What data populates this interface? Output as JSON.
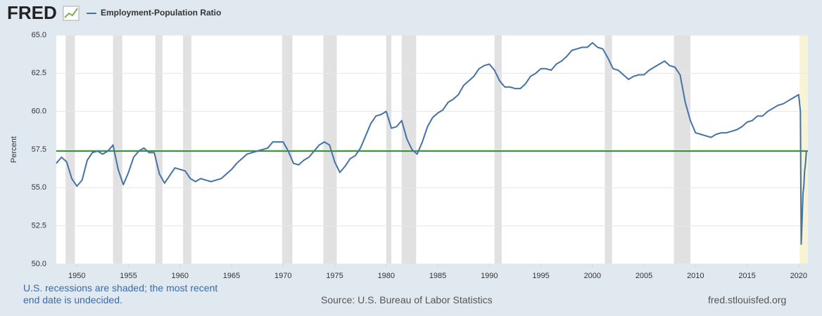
{
  "chart_data": {
    "type": "line",
    "logo": "FRED",
    "y_label": "Percent",
    "note": "U.S. recessions are shaded; the most recent end date is undecided.",
    "source": "Source: U.S. Bureau of Labor Statistics",
    "site": "fred.stlouisfed.org",
    "xlim": [
      1948,
      2020.9
    ],
    "xticks": [
      1950,
      1955,
      1960,
      1965,
      1970,
      1975,
      1980,
      1985,
      1990,
      1995,
      2000,
      2005,
      2010,
      2015,
      2020
    ],
    "ylim": [
      50,
      65
    ],
    "yticks": [
      {
        "value": 50,
        "label": "50.0"
      },
      52.5,
      {
        "value": 55,
        "label": "55.0"
      },
      57.5,
      {
        "value": 60,
        "label": "60.0"
      },
      62.5,
      {
        "value": 65,
        "label": "65.0"
      }
    ],
    "grid": true,
    "reference_line": {
      "value": 57.4,
      "color": "#2e8b2e"
    },
    "recession_color": "#e1e1e1",
    "recent_recession_color": "#f7f3d4",
    "recessions": [
      [
        1948.9,
        1949.8
      ],
      [
        1953.5,
        1954.4
      ],
      [
        1957.6,
        1958.3
      ],
      [
        1960.3,
        1961.1
      ],
      [
        1969.9,
        1970.9
      ],
      [
        1973.9,
        1975.2
      ],
      [
        1980.0,
        1980.5
      ],
      [
        1981.5,
        1982.9
      ],
      [
        1990.5,
        1991.2
      ],
      [
        2001.2,
        2001.9
      ],
      [
        2007.9,
        2009.5
      ],
      [
        2020.1,
        2020.9
      ]
    ],
    "x": [
      1948.0,
      1948.5,
      1949.0,
      1949.5,
      1950.0,
      1950.5,
      1951.0,
      1951.5,
      1952.0,
      1952.5,
      1953.0,
      1953.5,
      1954.0,
      1954.5,
      1955.0,
      1955.5,
      1956.0,
      1956.5,
      1957.0,
      1957.5,
      1958.0,
      1958.5,
      1959.0,
      1959.5,
      1960.0,
      1960.5,
      1961.0,
      1961.5,
      1962.0,
      1962.5,
      1963.0,
      1963.5,
      1964.0,
      1964.5,
      1965.0,
      1965.5,
      1966.0,
      1966.5,
      1967.0,
      1967.5,
      1968.0,
      1968.5,
      1969.0,
      1969.5,
      1970.0,
      1970.5,
      1971.0,
      1971.5,
      1972.0,
      1972.5,
      1973.0,
      1973.5,
      1974.0,
      1974.5,
      1975.0,
      1975.5,
      1976.0,
      1976.5,
      1977.0,
      1977.5,
      1978.0,
      1978.5,
      1979.0,
      1979.5,
      1980.0,
      1980.5,
      1981.0,
      1981.5,
      1982.0,
      1982.5,
      1983.0,
      1983.5,
      1984.0,
      1984.5,
      1985.0,
      1985.5,
      1986.0,
      1986.5,
      1987.0,
      1987.5,
      1988.0,
      1988.5,
      1989.0,
      1989.5,
      1990.0,
      1990.5,
      1991.0,
      1991.5,
      1992.0,
      1992.5,
      1993.0,
      1993.5,
      1994.0,
      1994.5,
      1995.0,
      1995.5,
      1996.0,
      1996.5,
      1997.0,
      1997.5,
      1998.0,
      1998.5,
      1999.0,
      1999.5,
      2000.0,
      2000.5,
      2001.0,
      2001.5,
      2002.0,
      2002.5,
      2003.0,
      2003.5,
      2004.0,
      2004.5,
      2005.0,
      2005.5,
      2006.0,
      2006.5,
      2007.0,
      2007.5,
      2008.0,
      2008.5,
      2009.0,
      2009.5,
      2010.0,
      2010.5,
      2011.0,
      2011.5,
      2012.0,
      2012.5,
      2013.0,
      2013.5,
      2014.0,
      2014.5,
      2015.0,
      2015.5,
      2016.0,
      2016.5,
      2017.0,
      2017.5,
      2018.0,
      2018.5,
      2019.0,
      2019.5,
      2020.0,
      2020.17,
      2020.25,
      2020.33,
      2020.42,
      2020.5,
      2020.58,
      2020.67,
      2020.75,
      2020.83
    ],
    "series": [
      {
        "name": "Employment-Population Ratio",
        "color": "#4572a7",
        "values": [
          56.6,
          57.0,
          56.7,
          55.6,
          55.1,
          55.5,
          56.8,
          57.3,
          57.4,
          57.2,
          57.4,
          57.8,
          56.2,
          55.2,
          56.0,
          57.0,
          57.4,
          57.6,
          57.3,
          57.3,
          55.9,
          55.3,
          55.8,
          56.3,
          56.2,
          56.1,
          55.6,
          55.4,
          55.6,
          55.5,
          55.4,
          55.5,
          55.6,
          55.9,
          56.2,
          56.6,
          56.9,
          57.2,
          57.3,
          57.4,
          57.5,
          57.6,
          58.0,
          58.0,
          58.0,
          57.4,
          56.6,
          56.5,
          56.8,
          57.0,
          57.4,
          57.8,
          58.0,
          57.8,
          56.7,
          56.0,
          56.4,
          56.9,
          57.1,
          57.6,
          58.4,
          59.2,
          59.7,
          59.8,
          60.0,
          58.9,
          59.0,
          59.4,
          58.2,
          57.5,
          57.2,
          58.0,
          59.0,
          59.6,
          59.9,
          60.1,
          60.6,
          60.8,
          61.1,
          61.7,
          62.0,
          62.3,
          62.8,
          63.0,
          63.1,
          62.7,
          62.0,
          61.6,
          61.6,
          61.5,
          61.5,
          61.8,
          62.3,
          62.5,
          62.8,
          62.8,
          62.7,
          63.1,
          63.3,
          63.6,
          64.0,
          64.1,
          64.2,
          64.2,
          64.5,
          64.2,
          64.1,
          63.5,
          62.8,
          62.7,
          62.4,
          62.1,
          62.3,
          62.4,
          62.4,
          62.7,
          62.9,
          63.1,
          63.3,
          63.0,
          62.9,
          62.4,
          60.6,
          59.4,
          58.6,
          58.5,
          58.4,
          58.3,
          58.5,
          58.6,
          58.6,
          58.7,
          58.8,
          59.0,
          59.3,
          59.4,
          59.7,
          59.7,
          60.0,
          60.2,
          60.4,
          60.5,
          60.7,
          60.9,
          61.1,
          60.0,
          51.3,
          52.8,
          54.6,
          55.1,
          56.1,
          56.6,
          57.4,
          57.4
        ]
      }
    ]
  }
}
